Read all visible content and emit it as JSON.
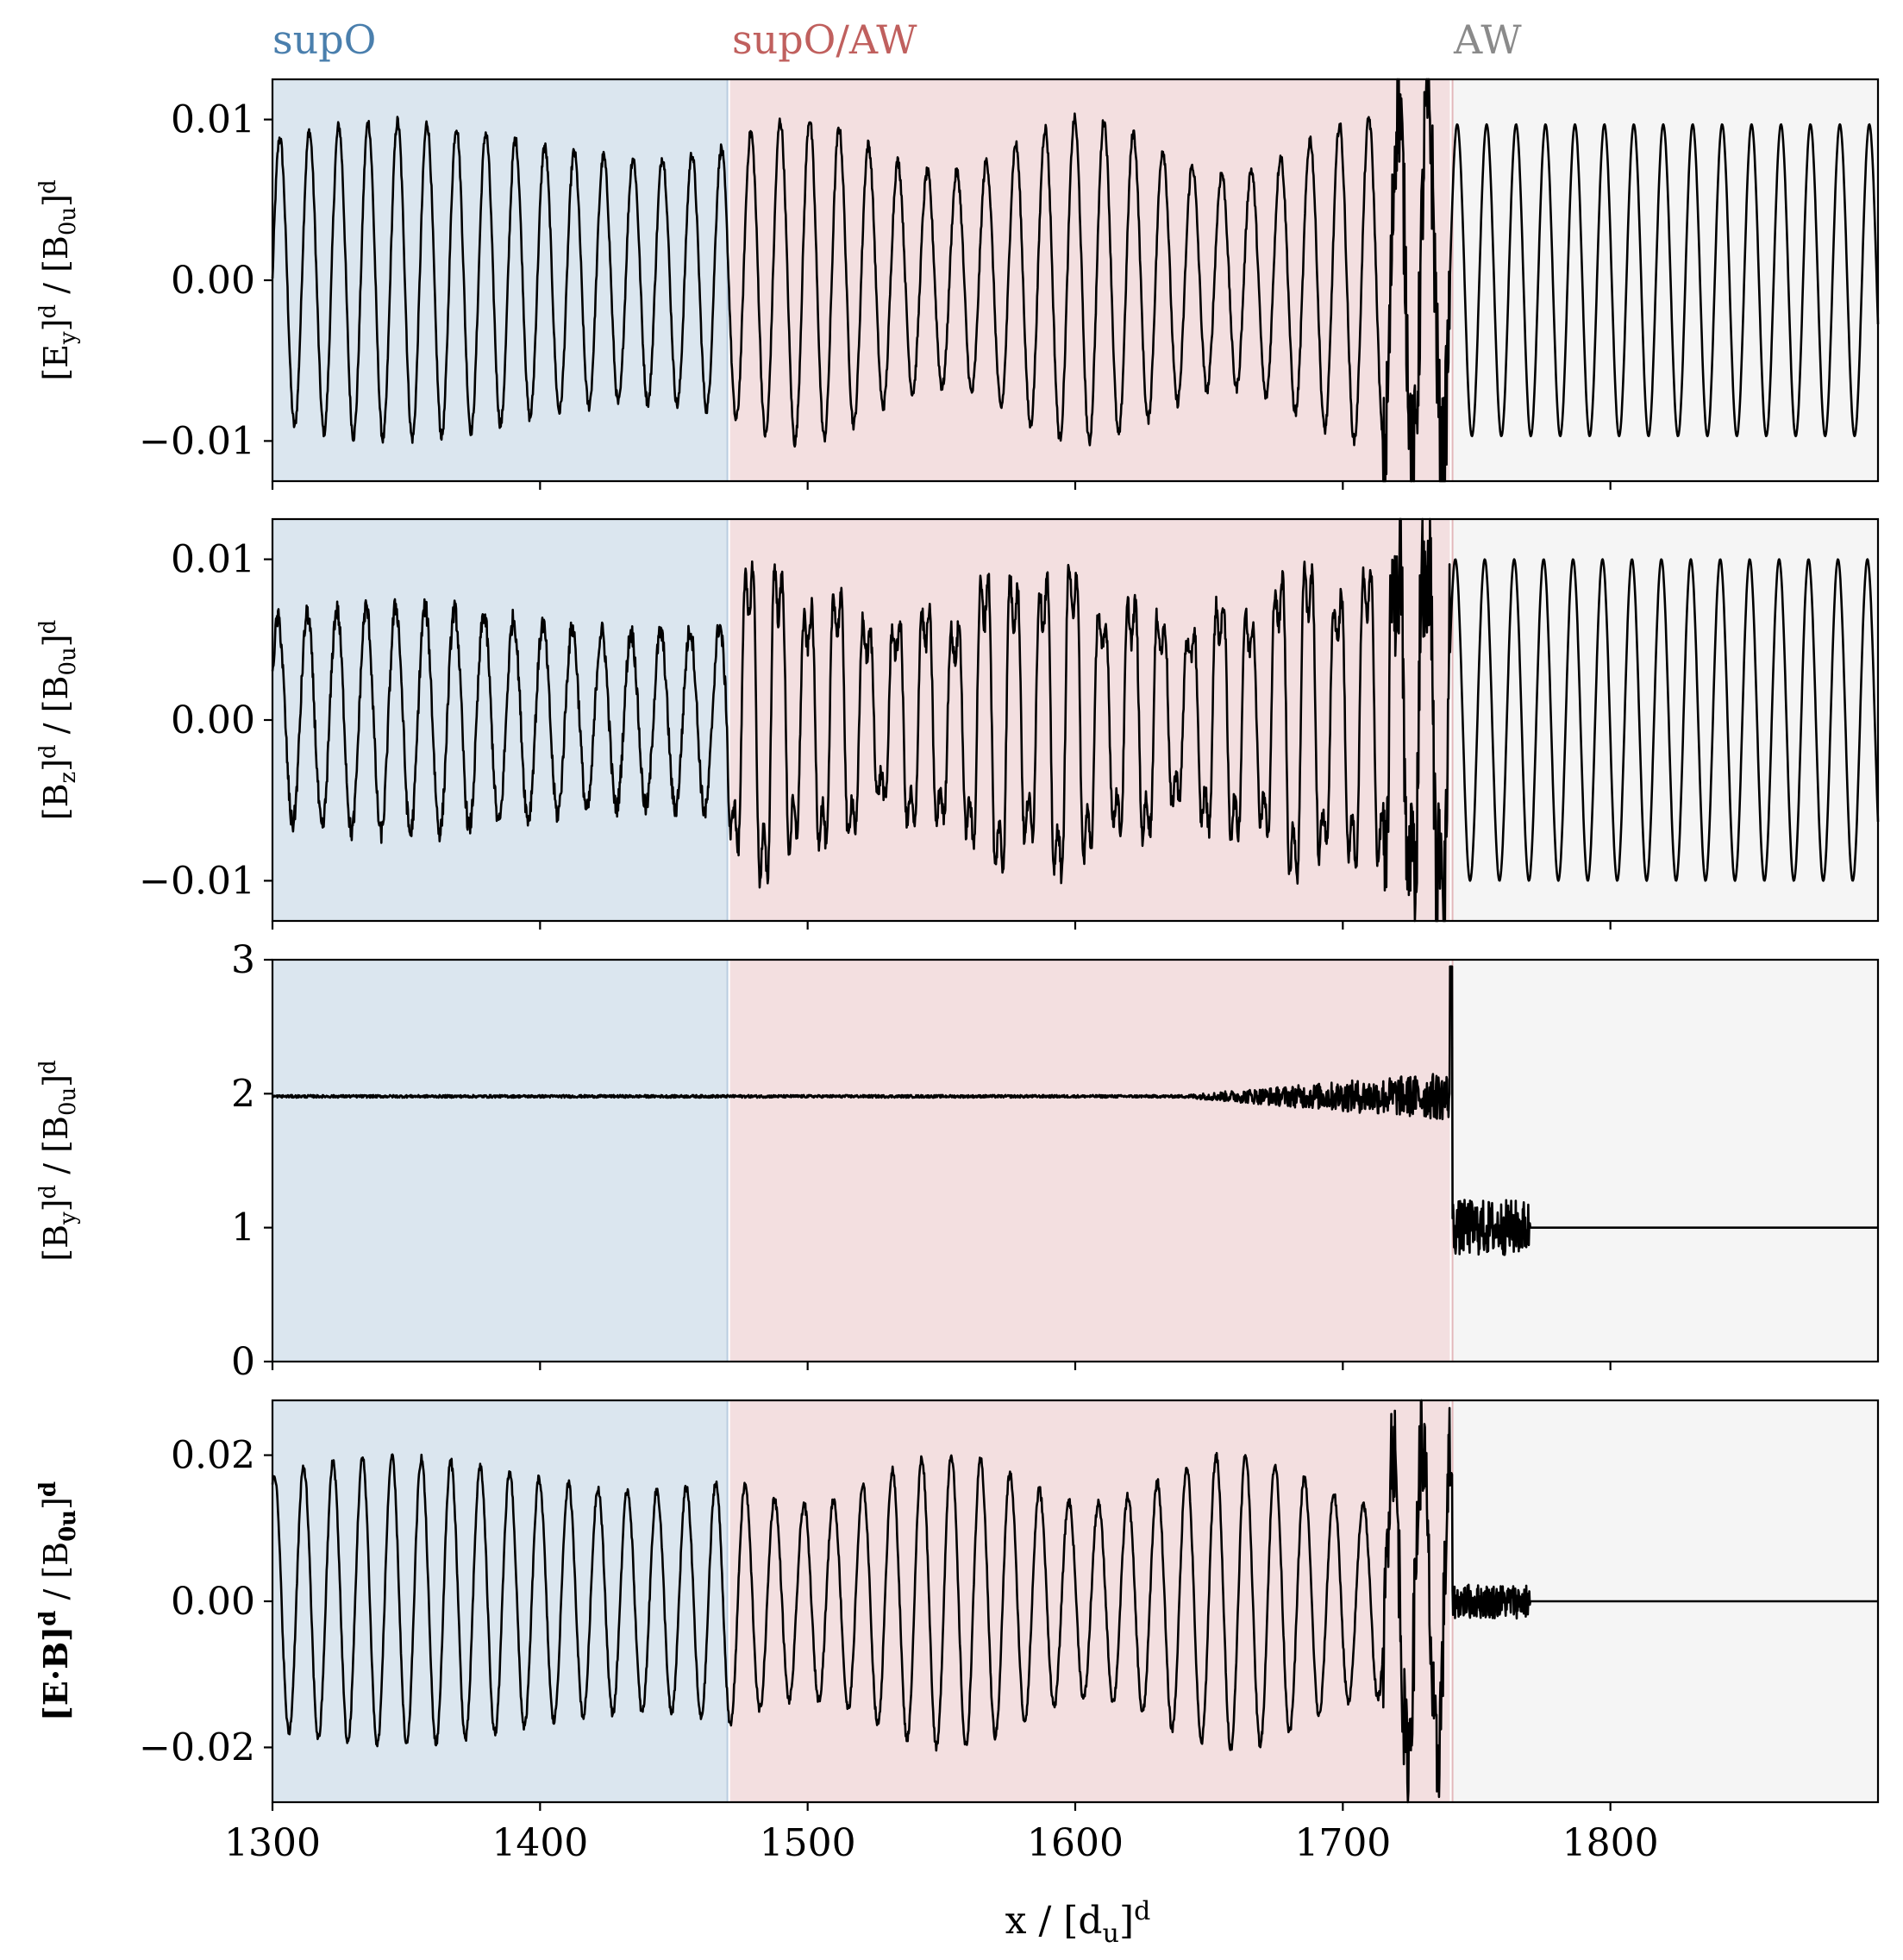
{
  "chart_data": {
    "type": "line",
    "layout": "4 stacked subplots sharing the x-axis",
    "x_range": [
      1300,
      1900
    ],
    "x_ticks": [
      1300,
      1400,
      1500,
      1600,
      1700,
      1800
    ],
    "x_tick_labels": [
      "1300",
      "1400",
      "1500",
      "1600",
      "1700",
      "1800"
    ],
    "xlabel": {
      "base": "x / [d",
      "sub": "u",
      "close": "]",
      "sup": "d"
    },
    "series_color": "#000000",
    "regions": [
      {
        "name": "supO",
        "x": [
          1300,
          1470
        ],
        "color": "#dbe6ef",
        "label_color": "#4a7fad"
      },
      {
        "name": "supO/AW",
        "x": [
          1471,
          1740
        ],
        "color": "#f3dfe0",
        "label_color": "#c0605e"
      },
      {
        "name": "AW",
        "x": [
          1741,
          1900
        ],
        "color": "#f5f5f5",
        "label_color": "#8a8a8a"
      }
    ],
    "panels": [
      {
        "id": "ey",
        "ylabel": {
          "main": "E",
          "sub": "y",
          "denom": "B",
          "denom_sub": "0u",
          "sup": "d"
        },
        "ylim": [
          -0.0125,
          0.0125
        ],
        "yticks": [
          -0.01,
          0.0,
          0.01
        ],
        "ytick_labels": [
          "−0.01",
          "0.00",
          "0.01"
        ],
        "signal": {
          "kind": "oscillation",
          "period": 11,
          "amp_supO": 0.0095,
          "amp_mix": 0.0095,
          "amp_aw": 0.0097,
          "noise": 0.0007,
          "jump_x": 1740,
          "after_jump": "wave",
          "burst": [
            1715,
            1740
          ],
          "burst_amp": 0.014
        }
      },
      {
        "id": "bz",
        "ylabel": {
          "main": "B",
          "sub": "z",
          "denom": "B",
          "denom_sub": "0u",
          "sup": "d"
        },
        "ylim": [
          -0.0125,
          0.0125
        ],
        "yticks": [
          -0.01,
          0.0,
          0.01
        ],
        "ytick_labels": [
          "−0.01",
          "0.00",
          "0.01"
        ],
        "signal": {
          "kind": "oscillation",
          "period": 11,
          "amp_supO": 0.0068,
          "amp_mix": 0.009,
          "amp_aw": 0.01,
          "noise": 0.0013,
          "jump_x": 1740,
          "after_jump": "wave",
          "burst": [
            1715,
            1740
          ],
          "burst_amp": 0.013
        }
      },
      {
        "id": "by",
        "ylabel": {
          "main": "B",
          "sub": "y",
          "denom": "B",
          "denom_sub": "0u",
          "sup": "d"
        },
        "ylim": [
          0,
          3
        ],
        "yticks": [
          0,
          1,
          2,
          3
        ],
        "ytick_labels": [
          "0",
          "1",
          "2",
          "3"
        ],
        "signal": {
          "kind": "step",
          "level_before": 1.98,
          "level_after": 1.0,
          "jump_x": 1741,
          "noise_end_x": 1770,
          "peak": 2.95
        }
      },
      {
        "id": "eb",
        "ylabel": {
          "main": "E·B",
          "sub": "",
          "denom": "B",
          "denom_sub": "0u",
          "sup": "d",
          "bold": true
        },
        "ylim": [
          -0.0275,
          0.0275
        ],
        "yticks": [
          -0.02,
          0.0,
          0.02
        ],
        "ytick_labels": [
          "−0.02",
          "0.00",
          "0.02"
        ],
        "signal": {
          "kind": "oscillation",
          "period": 11,
          "amp_supO": 0.019,
          "amp_mix": 0.019,
          "amp_aw": 0.0,
          "noise": 0.0012,
          "jump_x": 1741,
          "after_jump": "flat",
          "noise_end_x": 1770,
          "burst": [
            1715,
            1740
          ],
          "burst_amp": 0.027
        }
      }
    ]
  }
}
